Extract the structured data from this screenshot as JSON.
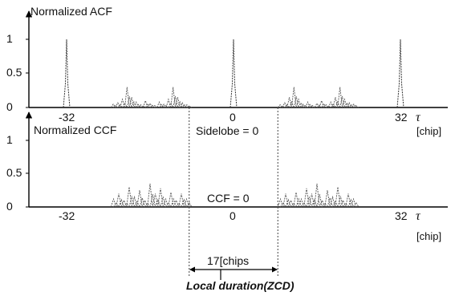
{
  "chart_data": [
    {
      "type": "line",
      "title": "Normalized ACF",
      "xlabel_symbol": "τ",
      "xlabel_unit": "[chip]",
      "xticks": [
        "-32",
        "0",
        "32"
      ],
      "yticks": [
        "0",
        "0.5",
        "1"
      ],
      "ylim": [
        0,
        1.1
      ],
      "xlim": [
        -44,
        45
      ],
      "annotation": "Sidelobe = 0",
      "peaks": [
        {
          "x": -32,
          "y": 1
        },
        {
          "x": 0,
          "y": 1
        },
        {
          "x": 32,
          "y": 1
        }
      ],
      "sidelobe_regions": [
        {
          "x_start": -23.5,
          "x_end": -8.5,
          "values": [
            0.05,
            0.07,
            0.12,
            0.3,
            0.15,
            0.08,
            0.04,
            0.1,
            0.06,
            0.03,
            0.08,
            0.05,
            0.12,
            0.3,
            0.15,
            0.07,
            0.04
          ]
        },
        {
          "x_start": 8.5,
          "x_end": 23.5,
          "values": [
            0.04,
            0.07,
            0.15,
            0.3,
            0.12,
            0.05,
            0.08,
            0.03,
            0.06,
            0.1,
            0.04,
            0.08,
            0.15,
            0.3,
            0.12,
            0.07,
            0.05
          ]
        }
      ]
    },
    {
      "type": "line",
      "title": "Normalized CCF",
      "xlabel_symbol": "τ",
      "xlabel_unit": "[chip]",
      "xticks": [
        "-32",
        "0",
        "32"
      ],
      "yticks": [
        "0",
        "0.5",
        "1"
      ],
      "ylim": [
        0,
        1.1
      ],
      "xlim": [
        -44,
        45
      ],
      "annotation": "CCF = 0",
      "regions": [
        {
          "x_start": -23.5,
          "x_end": -8.5,
          "values": [
            0.12,
            0.2,
            0.1,
            0.3,
            0.15,
            0.25,
            0.1,
            0.35,
            0.2,
            0.28,
            0.12,
            0.22,
            0.1,
            0.2,
            0.12
          ]
        },
        {
          "x_start": 8.5,
          "x_end": 23.5,
          "values": [
            0.12,
            0.2,
            0.1,
            0.22,
            0.12,
            0.28,
            0.2,
            0.35,
            0.1,
            0.25,
            0.15,
            0.3,
            0.1,
            0.2,
            0.12
          ]
        }
      ]
    }
  ],
  "zcd": {
    "x_start": -8.5,
    "x_end": 8.5,
    "span_label": "17[chips",
    "caption": "Local duration(ZCD)"
  }
}
